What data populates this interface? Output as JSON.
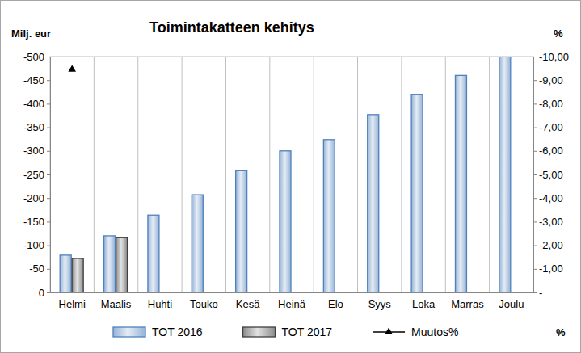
{
  "chart_data": {
    "type": "bar",
    "title": "Toimintakatteen kehitys",
    "y_label": "Milj. eur",
    "y2_label": "%",
    "annotations": [
      "%"
    ],
    "categories": [
      "Helmi",
      "Maalis",
      "Huhti",
      "Touko",
      "Kesä",
      "Heinä",
      "Elo",
      "Syys",
      "Loka",
      "Marras",
      "Joulu"
    ],
    "series": [
      {
        "name": "TOT 2016",
        "type": "bar",
        "color": "#4f81bd",
        "values": [
          -79,
          -120,
          -164,
          -207,
          -258,
          -300,
          -324,
          -377,
          -420,
          -460,
          -500
        ]
      },
      {
        "name": "TOT 2017",
        "type": "bar",
        "color": "#404040",
        "values": [
          -72,
          -116,
          null,
          null,
          null,
          null,
          null,
          null,
          null,
          null,
          null
        ]
      },
      {
        "name": "Muutos%",
        "type": "line",
        "axis": "y2",
        "color": "#000000",
        "marker": "triangle",
        "values": [
          -9.45,
          null,
          null,
          null,
          null,
          null,
          null,
          null,
          null,
          null,
          null
        ]
      }
    ],
    "ylim": [
      0,
      -500
    ],
    "yticks": [
      0,
      -50,
      -100,
      -150,
      -200,
      -250,
      -300,
      -350,
      -400,
      -450,
      -500
    ],
    "y2lim": [
      0,
      -10
    ],
    "y2ticks": [
      {
        "value": 0,
        "label": "-"
      },
      {
        "value": -1,
        "label": "-1,00"
      },
      {
        "value": -2,
        "label": "-2,00"
      },
      {
        "value": -3,
        "label": "-3,00"
      },
      {
        "value": -4,
        "label": "-4,00"
      },
      {
        "value": -5,
        "label": "-5,00"
      },
      {
        "value": -6,
        "label": "-6,00"
      },
      {
        "value": -7,
        "label": "-7,00"
      },
      {
        "value": -8,
        "label": "-8,00"
      },
      {
        "value": -9,
        "label": "-9,00"
      },
      {
        "value": -10,
        "label": "-10,00"
      }
    ],
    "grid": true,
    "legend": "bottom"
  }
}
